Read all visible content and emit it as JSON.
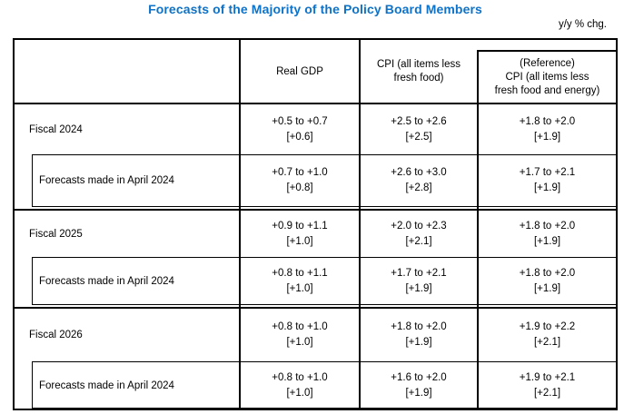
{
  "title": "Forecasts of the Majority of the Policy Board Members",
  "unit_note": "y/y % chg.",
  "colors": {
    "title_blue": "#0d72c8",
    "border": "#000000",
    "background": "#ffffff"
  },
  "table": {
    "headers": {
      "row_label": "",
      "gdp": "Real GDP",
      "cpi_line1": "CPI (all items less",
      "cpi_line2": "fresh food)",
      "ref_line1": "(Reference)",
      "ref_line2": "CPI (all items less",
      "ref_line3": "fresh food and energy)"
    },
    "groups": [
      {
        "fiscal": {
          "label": "Fiscal 2024",
          "gdp": {
            "range": "+0.5 to +0.7",
            "median": "[+0.6]"
          },
          "cpi": {
            "range": "+2.5 to +2.6",
            "median": "[+2.5]"
          },
          "ref": {
            "range": "+1.8 to +2.0",
            "median": "[+1.9]"
          }
        },
        "april": {
          "label": "Forecasts made in April 2024",
          "gdp": {
            "range": "+0.7 to +1.0",
            "median": "[+0.8]"
          },
          "cpi": {
            "range": "+2.6 to +3.0",
            "median": "[+2.8]"
          },
          "ref": {
            "range": "+1.7 to +2.1",
            "median": "[+1.9]"
          }
        }
      },
      {
        "fiscal": {
          "label": "Fiscal 2025",
          "gdp": {
            "range": "+0.9 to +1.1",
            "median": "[+1.0]"
          },
          "cpi": {
            "range": "+2.0 to +2.3",
            "median": "[+2.1]"
          },
          "ref": {
            "range": "+1.8 to +2.0",
            "median": "[+1.9]"
          }
        },
        "april": {
          "label": "Forecasts made in April 2024",
          "gdp": {
            "range": "+0.8 to +1.1",
            "median": "[+1.0]"
          },
          "cpi": {
            "range": "+1.7 to +2.1",
            "median": "[+1.9]"
          },
          "ref": {
            "range": "+1.8 to +2.0",
            "median": "[+1.9]"
          }
        }
      },
      {
        "fiscal": {
          "label": "Fiscal 2026",
          "gdp": {
            "range": "+0.8 to +1.0",
            "median": "[+1.0]"
          },
          "cpi": {
            "range": "+1.8 to +2.0",
            "median": "[+1.9]"
          },
          "ref": {
            "range": "+1.9 to +2.2",
            "median": "[+2.1]"
          }
        },
        "april": {
          "label": "Forecasts made in April 2024",
          "gdp": {
            "range": "+0.8 to +1.0",
            "median": "[+1.0]"
          },
          "cpi": {
            "range": "+1.6 to +2.0",
            "median": "[+1.9]"
          },
          "ref": {
            "range": "+1.9 to +2.1",
            "median": "[+2.1]"
          }
        }
      }
    ]
  }
}
